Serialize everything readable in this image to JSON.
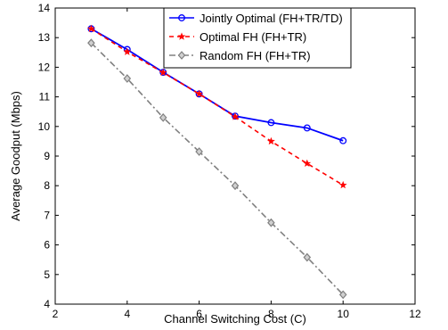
{
  "chart_data": {
    "type": "line",
    "title": "",
    "xlabel": "Channel Switching Cost (C)",
    "ylabel": "Average Goodput (Mbps)",
    "xlim": [
      2,
      12
    ],
    "ylim": [
      4,
      14
    ],
    "xticks": [
      2,
      4,
      6,
      8,
      10,
      12
    ],
    "yticks": [
      4,
      5,
      6,
      7,
      8,
      9,
      10,
      11,
      12,
      13,
      14
    ],
    "grid": false,
    "legend_position": "top-right",
    "series": [
      {
        "name": "Jointly Optimal (FH+TR/TD)",
        "color": "#0000ff",
        "line_style": "solid",
        "marker": "circle",
        "x": [
          3,
          4,
          5,
          6,
          7,
          8,
          9,
          10
        ],
        "y": [
          13.3,
          12.6,
          11.83,
          11.1,
          10.35,
          10.13,
          9.95,
          9.52
        ]
      },
      {
        "name": "Optimal FH (FH+TR)",
        "color": "#ff0000",
        "line_style": "dashed",
        "marker": "star",
        "x": [
          3,
          4,
          5,
          6,
          7,
          8,
          9,
          10
        ],
        "y": [
          13.3,
          12.52,
          11.82,
          11.1,
          10.33,
          9.5,
          8.75,
          8.02
        ]
      },
      {
        "name": "Random FH (FH+TR)",
        "color": "#808080",
        "line_style": "dashdot",
        "marker": "diamond",
        "x": [
          3,
          4,
          5,
          6,
          7,
          8,
          9,
          10
        ],
        "y": [
          12.82,
          11.62,
          10.3,
          9.15,
          8.0,
          6.75,
          5.58,
          4.32
        ]
      }
    ]
  }
}
